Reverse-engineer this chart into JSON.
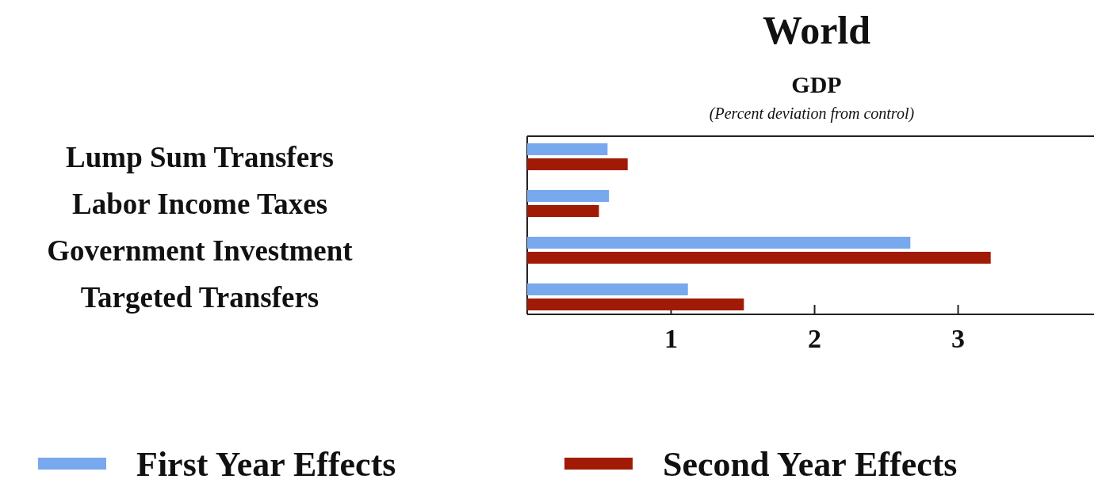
{
  "chart_data": {
    "type": "bar",
    "orientation": "horizontal",
    "title": "World",
    "subtitle": "GDP",
    "xlabel": "(Percent deviation from control)",
    "categories": [
      "Lump Sum Transfers",
      "Labor Income Taxes",
      "Government Investment",
      "Targeted Transfers"
    ],
    "series": [
      {
        "name": "First Year Effects",
        "color": "#78a8ee",
        "values": [
          0.56,
          0.57,
          2.67,
          1.12
        ]
      },
      {
        "name": "Second Year Effects",
        "color": "#a01a05",
        "values": [
          0.7,
          0.5,
          3.23,
          1.51
        ]
      }
    ],
    "xlim": [
      0,
      3.95
    ],
    "xticks": [
      1,
      2,
      3
    ],
    "legend": "bottom",
    "grid": false
  }
}
